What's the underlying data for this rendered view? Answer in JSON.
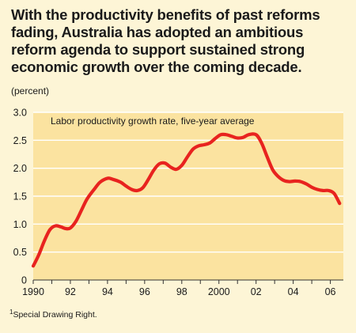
{
  "headline": "With the productivity benefits of past reforms fading, Australia has adopted an ambitious reform agenda to support sustained strong economic growth over the coming decade.",
  "unit_label": "(percent)",
  "footnote": {
    "marker": "1",
    "text": "Special Drawing Right."
  },
  "colors": {
    "page_background": "#fdf5d6",
    "plot_background": "#fbe3a0",
    "line": "#e8231f",
    "gridline": "#ffffff"
  },
  "chart_data": {
    "type": "line",
    "title": "",
    "annotation": "Labor productivity growth rate, five-year average",
    "xlabel": "",
    "ylabel": "(percent)",
    "xlim": [
      1990,
      2006.7
    ],
    "ylim": [
      0,
      3.0
    ],
    "yticks": [
      0,
      0.5,
      1.0,
      1.5,
      2.0,
      2.5,
      3.0
    ],
    "ytick_labels": [
      "0",
      "0.5",
      "1.0",
      "1.5",
      "2.0",
      "2.5",
      "3.0"
    ],
    "xticks": [
      1990,
      1992,
      1994,
      1996,
      1998,
      2000,
      2002,
      2004,
      2006
    ],
    "xtick_labels": [
      "1990",
      "92",
      "94",
      "96",
      "98",
      "2000",
      "02",
      "04",
      "06"
    ],
    "grid": true,
    "series": [
      {
        "name": "",
        "x": [
          1990.0,
          1990.3,
          1990.6,
          1990.9,
          1991.2,
          1991.5,
          1991.75,
          1992.0,
          1992.3,
          1992.6,
          1992.9,
          1993.3,
          1993.6,
          1994.0,
          1994.3,
          1994.7,
          1995.0,
          1995.3,
          1995.6,
          1995.9,
          1996.2,
          1996.5,
          1996.8,
          1997.1,
          1997.4,
          1997.7,
          1998.0,
          1998.3,
          1998.6,
          1998.9,
          1999.2,
          1999.5,
          1999.8,
          2000.1,
          2000.4,
          2000.7,
          2001.0,
          2001.3,
          2001.6,
          2002.0,
          2002.3,
          2002.6,
          2002.9,
          2003.2,
          2003.5,
          2003.8,
          2004.1,
          2004.4,
          2004.7,
          2005.0,
          2005.3,
          2005.6,
          2005.9,
          2006.2,
          2006.5
        ],
        "y": [
          0.25,
          0.45,
          0.7,
          0.9,
          0.97,
          0.95,
          0.92,
          0.93,
          1.05,
          1.25,
          1.45,
          1.63,
          1.75,
          1.82,
          1.8,
          1.75,
          1.68,
          1.62,
          1.6,
          1.65,
          1.8,
          1.97,
          2.08,
          2.09,
          2.02,
          1.98,
          2.05,
          2.2,
          2.34,
          2.4,
          2.42,
          2.45,
          2.53,
          2.6,
          2.6,
          2.57,
          2.54,
          2.55,
          2.6,
          2.6,
          2.45,
          2.2,
          1.97,
          1.85,
          1.78,
          1.76,
          1.77,
          1.76,
          1.72,
          1.66,
          1.62,
          1.6,
          1.6,
          1.55,
          1.37
        ]
      }
    ]
  }
}
